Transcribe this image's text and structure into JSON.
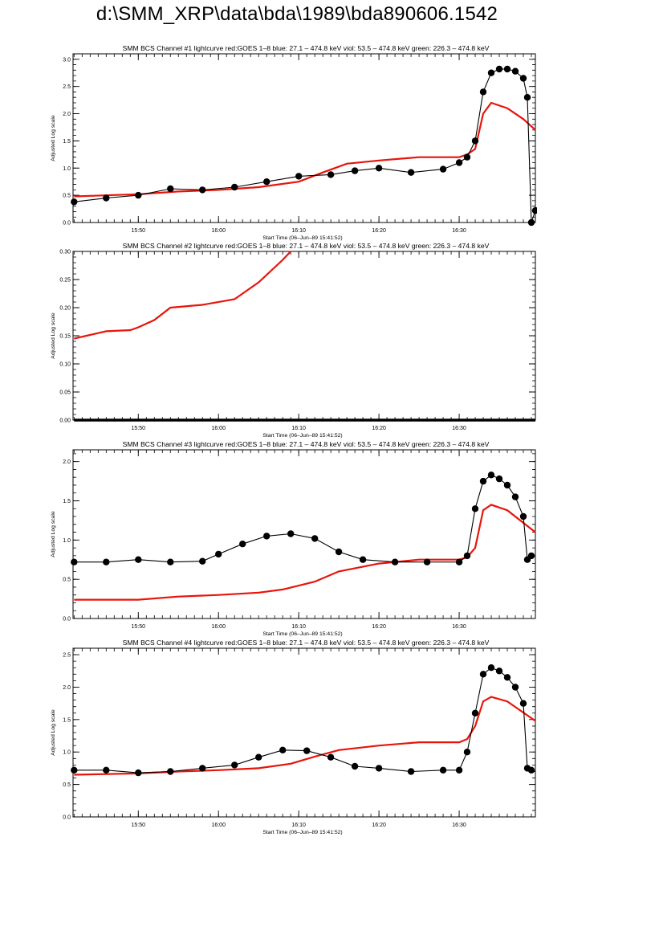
{
  "page": {
    "title": "d:\\SMM_XRP\\data\\bda\\1989\\bda890606.1542"
  },
  "colors": {
    "goes": "#e8140a",
    "bcs": "#000000"
  },
  "chart_data": [
    {
      "type": "line",
      "title": "SMM BCS Channel #1 lightcurve  red:GOES 1–8  blue: 27.1 – 474.8 keV  viol: 53.5 – 474.8 keV  green: 226.3 – 474.8 keV",
      "xlabel": "Start Time (06–Jun–89 15:41:52)",
      "ylabel": "Adjusted Log scale",
      "xlim": [
        "15:41:52",
        "16:39:30"
      ],
      "ylim": [
        0.0,
        3.1
      ],
      "yticks": [
        0.0,
        0.5,
        1.0,
        1.5,
        2.0,
        2.5,
        3.0
      ],
      "ytick_labels": [
        "0.0",
        "0.5",
        "1.0",
        "1.5",
        "2.0",
        "2.5",
        "3.0"
      ],
      "xtick_labels": [
        "15:50",
        "16:00",
        "16:10",
        "16:20",
        "16:30"
      ],
      "xticks": [
        "15:50",
        "16:00",
        "16:10",
        "16:20",
        "16:30"
      ],
      "series": [
        {
          "color": "#e8140a",
          "style": "line",
          "x": [
            "15:42",
            "15:50",
            "15:55",
            "16:00",
            "16:05",
            "16:10",
            "16:13",
            "16:16",
            "16:20",
            "16:25",
            "16:30",
            "16:31",
            "16:32",
            "16:33",
            "16:34",
            "16:36",
            "16:38",
            "16:39:30"
          ],
          "y": [
            0.48,
            0.52,
            0.57,
            0.6,
            0.65,
            0.75,
            0.92,
            1.08,
            1.14,
            1.2,
            1.2,
            1.25,
            1.35,
            2.0,
            2.2,
            2.1,
            1.9,
            1.7
          ]
        },
        {
          "color": "#000000",
          "style": "dots",
          "x": [
            "15:42",
            "15:46",
            "15:50",
            "15:54",
            "15:58",
            "16:02",
            "16:06",
            "16:10",
            "16:14",
            "16:17",
            "16:20",
            "16:24",
            "16:28",
            "16:30",
            "16:31",
            "16:32",
            "16:33",
            "16:34",
            "16:35",
            "16:36",
            "16:37",
            "16:38",
            "16:38:30",
            "16:39",
            "16:39:30"
          ],
          "y": [
            0.38,
            0.45,
            0.5,
            0.62,
            0.6,
            0.65,
            0.75,
            0.85,
            0.88,
            0.95,
            1.0,
            0.92,
            0.98,
            1.1,
            1.2,
            1.5,
            2.4,
            2.75,
            2.82,
            2.82,
            2.78,
            2.65,
            2.3,
            0.0,
            0.22
          ]
        }
      ]
    },
    {
      "type": "line",
      "title": "SMM BCS Channel #2 lightcurve  red:GOES 1–8  blue: 27.1 – 474.8 keV  viol: 53.5 – 474.8 keV  green: 226.3 – 474.8 keV",
      "xlabel": "Start Time (06–Jun–89 15:41:52)",
      "ylabel": "Adjusted Log scale",
      "xlim": [
        "15:41:52",
        "16:39:30"
      ],
      "ylim": [
        0.0,
        0.3
      ],
      "yticks": [
        0.0,
        0.05,
        0.1,
        0.15,
        0.2,
        0.25,
        0.3
      ],
      "ytick_labels": [
        "0.00",
        "0.05",
        "0.10",
        "0.15",
        "0.20",
        "0.25",
        "0.30"
      ],
      "xtick_labels": [
        "15:50",
        "16:00",
        "16:10",
        "16:20",
        "16:30"
      ],
      "xticks": [
        "15:50",
        "16:00",
        "16:10",
        "16:20",
        "16:30"
      ],
      "series": [
        {
          "color": "#e8140a",
          "style": "line",
          "x": [
            "15:42",
            "15:46",
            "15:49",
            "15:50",
            "15:52",
            "15:54",
            "15:58",
            "16:02",
            "16:05",
            "16:08",
            "16:09"
          ],
          "y": [
            0.145,
            0.158,
            0.16,
            0.165,
            0.178,
            0.2,
            0.205,
            0.215,
            0.245,
            0.285,
            0.3
          ]
        },
        {
          "color": "#000000",
          "style": "dots",
          "x": [
            "15:42",
            "16:39:30"
          ],
          "y": [
            0.0,
            0.0
          ]
        }
      ]
    },
    {
      "type": "line",
      "title": "SMM BCS Channel #3 lightcurve  red:GOES 1–8  blue: 27.1 – 474.8 keV  viol: 53.5 – 474.8 keV  green: 226.3 – 474.8 keV",
      "xlabel": "Start Time (06–Jun–89 15:41:52)",
      "ylabel": "Adjusted Log scale",
      "xlim": [
        "15:41:52",
        "16:39:30"
      ],
      "ylim": [
        0.0,
        2.15
      ],
      "yticks": [
        0.0,
        0.5,
        1.0,
        1.5,
        2.0
      ],
      "ytick_labels": [
        "0.0",
        "0.5",
        "1.0",
        "1.5",
        "2.0"
      ],
      "xtick_labels": [
        "15:50",
        "16:00",
        "16:10",
        "16:20",
        "16:30"
      ],
      "xticks": [
        "15:50",
        "16:00",
        "16:10",
        "16:20",
        "16:30"
      ],
      "series": [
        {
          "color": "#e8140a",
          "style": "line",
          "x": [
            "15:42",
            "15:50",
            "15:55",
            "16:00",
            "16:05",
            "16:08",
            "16:12",
            "16:15",
            "16:20",
            "16:25",
            "16:30",
            "16:31",
            "16:32",
            "16:33",
            "16:34",
            "16:36",
            "16:39:30"
          ],
          "y": [
            0.24,
            0.24,
            0.28,
            0.3,
            0.33,
            0.37,
            0.47,
            0.6,
            0.7,
            0.75,
            0.75,
            0.78,
            0.9,
            1.38,
            1.45,
            1.38,
            1.1
          ]
        },
        {
          "color": "#000000",
          "style": "dots",
          "x": [
            "15:42",
            "15:46",
            "15:50",
            "15:54",
            "15:58",
            "16:00",
            "16:03",
            "16:06",
            "16:09",
            "16:12",
            "16:15",
            "16:18",
            "16:22",
            "16:26",
            "16:30",
            "16:31",
            "16:32",
            "16:33",
            "16:34",
            "16:35",
            "16:36",
            "16:37",
            "16:38",
            "16:38:30",
            "16:39"
          ],
          "y": [
            0.72,
            0.72,
            0.75,
            0.72,
            0.73,
            0.82,
            0.95,
            1.05,
            1.08,
            1.02,
            0.85,
            0.75,
            0.72,
            0.72,
            0.72,
            0.8,
            1.4,
            1.75,
            1.83,
            1.78,
            1.7,
            1.55,
            1.3,
            0.75,
            0.8
          ]
        }
      ]
    },
    {
      "type": "line",
      "title": "SMM BCS Channel #4 lightcurve  red:GOES 1–8  blue: 27.1 – 474.8 keV  viol: 53.5 – 474.8 keV  green: 226.3 – 474.8 keV",
      "xlabel": "Start Time (06–Jun–89 15:41:52)",
      "ylabel": "Adjusted Log scale",
      "xlim": [
        "15:41:52",
        "16:39:30"
      ],
      "ylim": [
        0.0,
        2.6
      ],
      "yticks": [
        0.0,
        0.5,
        1.0,
        1.5,
        2.0,
        2.5
      ],
      "ytick_labels": [
        "0.0",
        "0.5",
        "1.0",
        "1.5",
        "2.0",
        "2.5"
      ],
      "xtick_labels": [
        "15:50",
        "16:00",
        "16:10",
        "16:20",
        "16:30"
      ],
      "xticks": [
        "15:50",
        "16:00",
        "16:10",
        "16:20",
        "16:30"
      ],
      "series": [
        {
          "color": "#e8140a",
          "style": "line",
          "x": [
            "15:42",
            "15:50",
            "15:55",
            "16:00",
            "16:05",
            "16:09",
            "16:12",
            "16:15",
            "16:20",
            "16:25",
            "16:30",
            "16:31",
            "16:32",
            "16:33",
            "16:34",
            "16:36",
            "16:39:30"
          ],
          "y": [
            0.65,
            0.67,
            0.7,
            0.72,
            0.75,
            0.82,
            0.93,
            1.03,
            1.1,
            1.15,
            1.15,
            1.2,
            1.4,
            1.78,
            1.85,
            1.78,
            1.48
          ]
        },
        {
          "color": "#000000",
          "style": "dots",
          "x": [
            "15:42",
            "15:46",
            "15:50",
            "15:54",
            "15:58",
            "16:02",
            "16:05",
            "16:08",
            "16:11",
            "16:14",
            "16:17",
            "16:20",
            "16:24",
            "16:28",
            "16:30",
            "16:31",
            "16:32",
            "16:33",
            "16:34",
            "16:35",
            "16:36",
            "16:37",
            "16:38",
            "16:38:30",
            "16:39"
          ],
          "y": [
            0.72,
            0.72,
            0.68,
            0.7,
            0.75,
            0.8,
            0.92,
            1.03,
            1.02,
            0.92,
            0.78,
            0.75,
            0.7,
            0.72,
            0.72,
            1.0,
            1.6,
            2.2,
            2.3,
            2.25,
            2.15,
            2.0,
            1.75,
            0.75,
            0.72
          ]
        }
      ]
    }
  ]
}
